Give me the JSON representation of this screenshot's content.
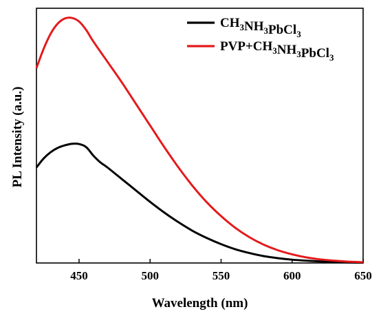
{
  "chart_data": {
    "type": "line",
    "xlabel": "Wavelength (nm)",
    "ylabel": "PL Intensity (a.u.)",
    "xlim": [
      420,
      650
    ],
    "ylim": [
      0,
      1.0
    ],
    "x_ticks": [
      450,
      500,
      550,
      600,
      650
    ],
    "y_tick_labels": false,
    "grid": false,
    "legend_position": "top-right",
    "series": [
      {
        "name": "CH3NH3PbCl3",
        "legend_base": "CH",
        "legend_parts": [
          [
            "CH",
            ""
          ],
          [
            "3",
            "sub"
          ],
          [
            "NH",
            ""
          ],
          [
            "3",
            "sub"
          ],
          [
            "PbCl",
            ""
          ],
          [
            "3",
            "sub"
          ]
        ],
        "color": "#000000",
        "x": [
          420,
          425,
          430,
          435,
          440,
          445,
          450,
          455,
          460,
          465,
          470,
          480,
          490,
          500,
          510,
          520,
          530,
          540,
          550,
          560,
          570,
          580,
          590,
          600,
          610,
          620,
          630,
          640,
          650
        ],
        "y": [
          0.375,
          0.41,
          0.435,
          0.452,
          0.462,
          0.468,
          0.467,
          0.455,
          0.422,
          0.395,
          0.375,
          0.33,
          0.285,
          0.24,
          0.198,
          0.16,
          0.126,
          0.098,
          0.074,
          0.054,
          0.039,
          0.027,
          0.019,
          0.013,
          0.009,
          0.006,
          0.004,
          0.002,
          0.001
        ]
      },
      {
        "name": "PVP+CH3NH3PbCl3",
        "legend_parts": [
          [
            "PVP+CH",
            ""
          ],
          [
            "3",
            "sub"
          ],
          [
            "NH",
            ""
          ],
          [
            "3",
            "sub"
          ],
          [
            "PbCl",
            ""
          ],
          [
            "3",
            "sub"
          ]
        ],
        "color": "#e41a1c",
        "x": [
          420,
          425,
          430,
          435,
          440,
          445,
          450,
          455,
          460,
          470,
          480,
          490,
          500,
          510,
          520,
          530,
          540,
          550,
          560,
          570,
          580,
          590,
          600,
          610,
          620,
          630,
          640,
          650
        ],
        "y": [
          0.765,
          0.84,
          0.9,
          0.94,
          0.96,
          0.962,
          0.948,
          0.915,
          0.87,
          0.79,
          0.71,
          0.625,
          0.54,
          0.455,
          0.375,
          0.302,
          0.238,
          0.184,
          0.138,
          0.101,
          0.072,
          0.05,
          0.034,
          0.022,
          0.014,
          0.009,
          0.005,
          0.003
        ]
      }
    ]
  }
}
